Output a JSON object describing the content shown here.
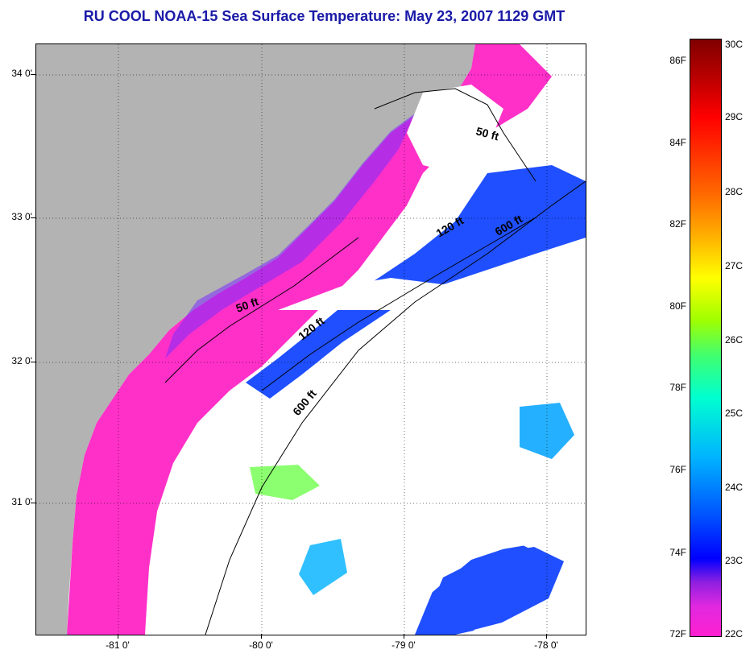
{
  "title": "RU COOL  NOAA-15  Sea Surface Temperature:  May 23, 2007 1129 GMT",
  "latitude_labels": [
    "34 0'",
    "33 0'",
    "32 0'",
    "31 0'"
  ],
  "longitude_labels": [
    "-81 0'",
    "-80 0'",
    "-79 0'",
    "-78 0'"
  ],
  "contours": [
    {
      "label": "50 ft"
    },
    {
      "label": "120 ft"
    },
    {
      "label": "600 ft"
    },
    {
      "label": "50 ft"
    },
    {
      "label": "120 ft"
    },
    {
      "label": "600 ft"
    }
  ],
  "colorbar": {
    "fahrenheit": [
      "86F",
      "84F",
      "82F",
      "80F",
      "78F",
      "76F",
      "74F",
      "72F"
    ],
    "celsius": [
      "30C",
      "29C",
      "28C",
      "27C",
      "26C",
      "25C",
      "24C",
      "23C",
      "22C"
    ]
  },
  "colors": {
    "title": "#1a1aa8",
    "land": "#b3b3b3",
    "cloud": "#ffffff",
    "warm_shelf": "#ff30c8",
    "cool_water": "#1f4fff"
  }
}
